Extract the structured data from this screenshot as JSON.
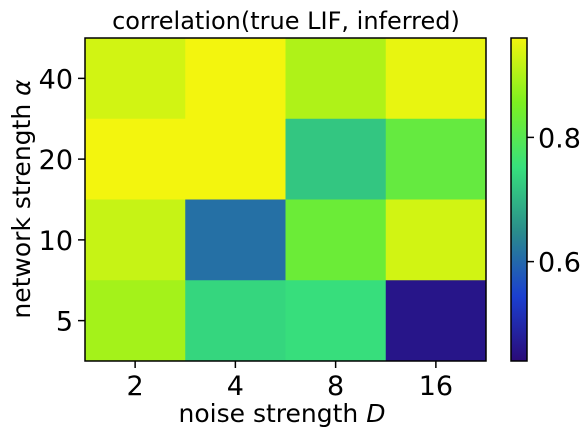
{
  "chart_data": {
    "type": "heatmap",
    "title": "correlation(true LIF, inferred)",
    "xlabel": {
      "text": "noise strength ",
      "symbol": "D"
    },
    "ylabel": {
      "text": "network strength ",
      "symbol": "α"
    },
    "x_categories": [
      "2",
      "4",
      "8",
      "16"
    ],
    "y_categories": [
      "40",
      "20",
      "10",
      "5"
    ],
    "values": [
      [
        0.93,
        0.96,
        0.9,
        0.95
      ],
      [
        0.96,
        0.96,
        0.72,
        0.82
      ],
      [
        0.92,
        0.61,
        0.83,
        0.93
      ],
      [
        0.89,
        0.74,
        0.75,
        0.46
      ]
    ],
    "colorbar": {
      "min": 0.44,
      "max": 0.96,
      "ticks": [
        0.6,
        0.8
      ],
      "ticklabels": [
        "0.6",
        "0.8"
      ]
    },
    "colormap": [
      "#2a0b78",
      "#1b3fd0",
      "#2a8c8c",
      "#37e07c",
      "#7df020",
      "#f3f50e"
    ],
    "grid": false
  }
}
